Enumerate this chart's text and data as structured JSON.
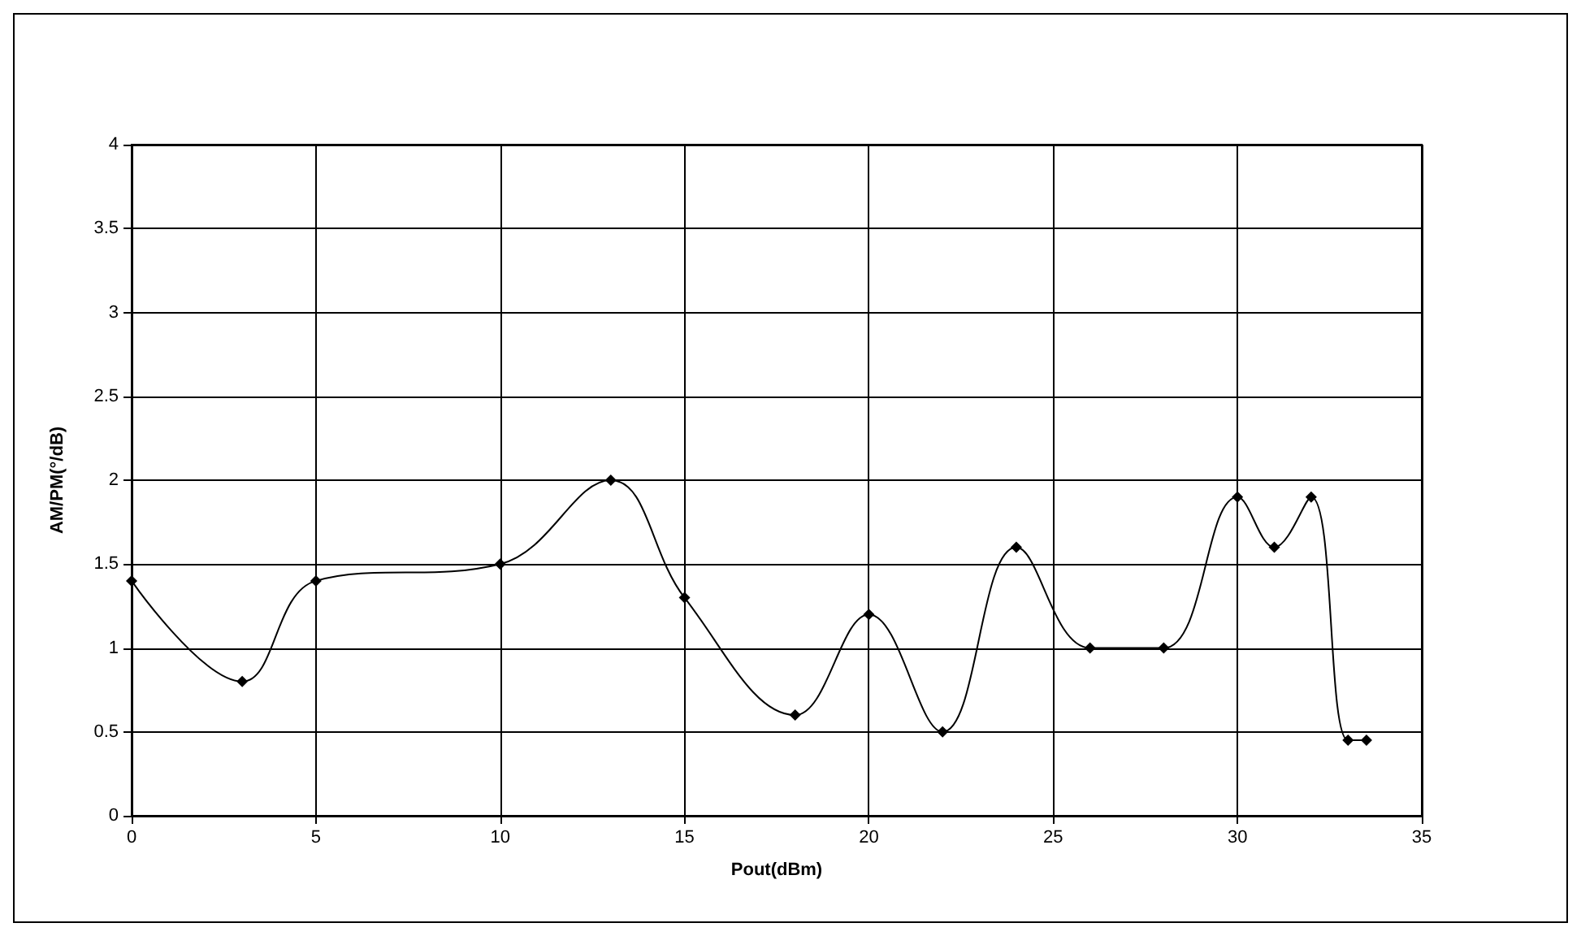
{
  "chart_data": {
    "type": "line",
    "xlabel": "Pout(dBm)",
    "ylabel": "AM/PM(°/dB)",
    "x": [
      0,
      3,
      5,
      10,
      13,
      15,
      18,
      20,
      22,
      24,
      26,
      28,
      30,
      31,
      32,
      33,
      33.5
    ],
    "series": [
      {
        "color": "#000000",
        "values": [
          1.4,
          0.8,
          1.4,
          1.5,
          2.0,
          1.3,
          0.6,
          1.2,
          0.5,
          1.6,
          1.0,
          1.0,
          1.9,
          1.6,
          1.9,
          0.45,
          0.45
        ]
      }
    ],
    "xlim": [
      0,
      35
    ],
    "xticks": [
      0,
      5,
      10,
      15,
      20,
      25,
      30,
      35
    ],
    "ylim": [
      0,
      4
    ],
    "yticks": [
      0,
      0.5,
      1,
      1.5,
      2,
      2.5,
      3,
      3.5,
      4
    ],
    "grid": true,
    "marker": "diamond",
    "line_style": "solid"
  }
}
